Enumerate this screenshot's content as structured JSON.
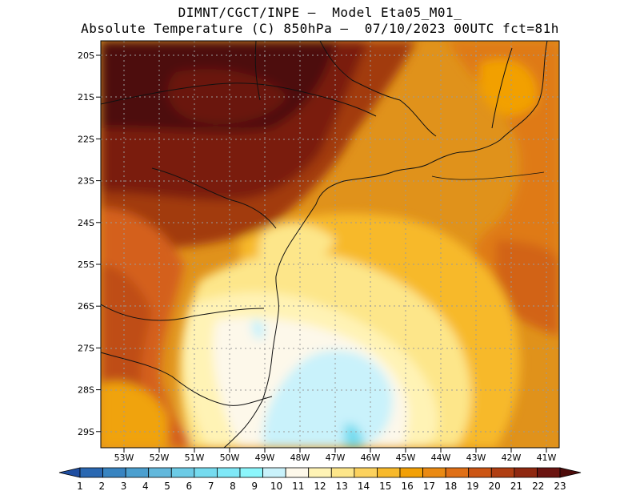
{
  "header": {
    "line1": "DIMNT/CGCT/INPE –  Model Eta05_M01_",
    "line2": "Absolute Temperature (C) 850hPa –  07/10/2023 00UTC fct=81h"
  },
  "map": {
    "lat_labels": [
      "20S",
      "21S",
      "22S",
      "23S",
      "24S",
      "25S",
      "26S",
      "27S",
      "28S",
      "29S"
    ],
    "lon_labels": [
      "53W",
      "52W",
      "51W",
      "50W",
      "49W",
      "48W",
      "47W",
      "46W",
      "45W",
      "44W",
      "43W",
      "42W",
      "41W"
    ],
    "grid": "dotted"
  },
  "colorbar": {
    "labels": [
      "1",
      "2",
      "3",
      "4",
      "5",
      "6",
      "7",
      "8",
      "9",
      "10",
      "11",
      "12",
      "13",
      "14",
      "15",
      "16",
      "17",
      "18",
      "19",
      "20",
      "21",
      "22",
      "23"
    ],
    "colors": [
      "#1f4ea1",
      "#2a68b2",
      "#3884c1",
      "#4b9fcf",
      "#62b8dc",
      "#6ccbe6",
      "#75dbef",
      "#7fe8f7",
      "#8cf6fc",
      "#c9f2fb",
      "#fdf8ea",
      "#fff3b5",
      "#fde68a",
      "#fcd25e",
      "#f7b92b",
      "#f2a006",
      "#ea8a13",
      "#df6f16",
      "#cc5514",
      "#b03e12",
      "#8f2810",
      "#6b1410",
      "#4d0b0a"
    ]
  }
}
